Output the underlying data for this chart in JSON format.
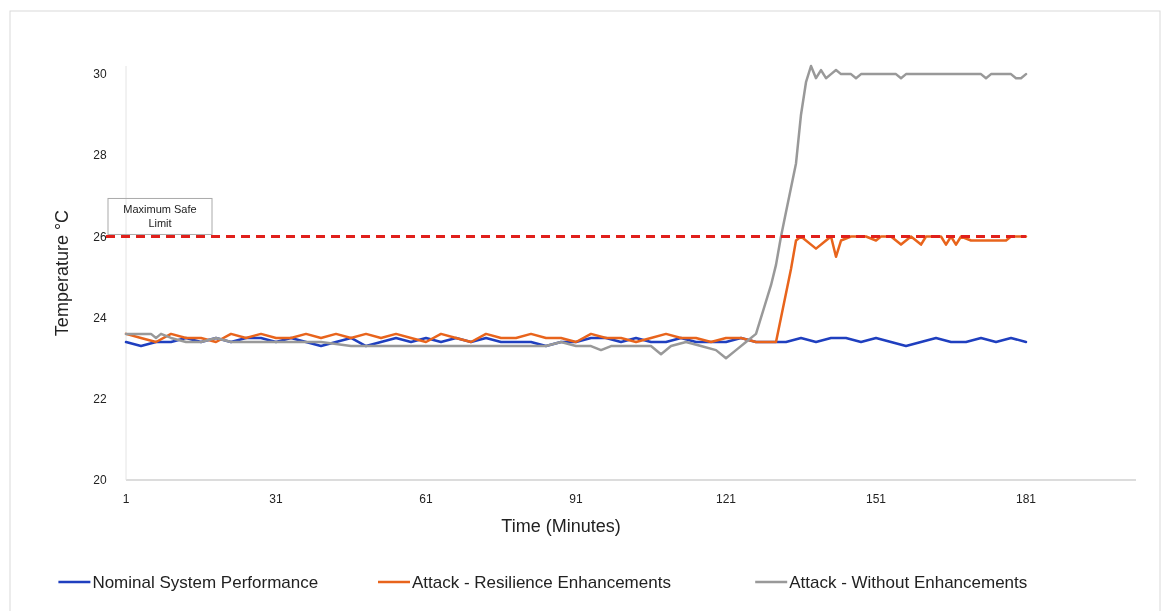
{
  "chart_data": {
    "type": "line",
    "xlabel": "Time (Minutes)",
    "ylabel": "Temperature °C",
    "xlim": [
      1,
      203
    ],
    "xticks": [
      1,
      31,
      61,
      91,
      121,
      151,
      181
    ],
    "ylim": [
      20,
      30.2
    ],
    "yticks": [
      20,
      22,
      24,
      26,
      28,
      30
    ],
    "grid": false,
    "legend": "bottom",
    "marker": "none",
    "line_style": "solid",
    "ref_lines": [
      {
        "axis": "y",
        "value": 26,
        "label": "Maximum Safe Limit",
        "color": "#e0201b",
        "line_style": "dashed"
      }
    ],
    "series": [
      {
        "name": "Nominal System Performance",
        "color": "#1f3fbf",
        "x": [
          1,
          4,
          7,
          10,
          13,
          16,
          19,
          22,
          25,
          28,
          31,
          34,
          37,
          40,
          43,
          46,
          49,
          52,
          55,
          58,
          61,
          64,
          67,
          70,
          73,
          76,
          79,
          82,
          85,
          88,
          91,
          94,
          97,
          100,
          103,
          106,
          109,
          112,
          115,
          118,
          121,
          124,
          127,
          130,
          133,
          136,
          139,
          142,
          145,
          148,
          151,
          154,
          157,
          160,
          163,
          166,
          169,
          172,
          175,
          178,
          181
        ],
        "values": [
          23.4,
          23.3,
          23.4,
          23.4,
          23.5,
          23.4,
          23.5,
          23.4,
          23.5,
          23.5,
          23.4,
          23.5,
          23.4,
          23.3,
          23.4,
          23.5,
          23.3,
          23.4,
          23.5,
          23.4,
          23.5,
          23.4,
          23.5,
          23.4,
          23.5,
          23.4,
          23.4,
          23.4,
          23.3,
          23.4,
          23.4,
          23.5,
          23.5,
          23.4,
          23.5,
          23.4,
          23.4,
          23.5,
          23.4,
          23.4,
          23.4,
          23.5,
          23.4,
          23.4,
          23.4,
          23.5,
          23.4,
          23.5,
          23.5,
          23.4,
          23.5,
          23.4,
          23.3,
          23.4,
          23.5,
          23.4,
          23.4,
          23.5,
          23.4,
          23.5,
          23.4
        ]
      },
      {
        "name": "Attack - Resilience Enhancements",
        "color": "#e8641c",
        "x": [
          1,
          4,
          7,
          10,
          13,
          16,
          19,
          22,
          25,
          28,
          31,
          34,
          37,
          40,
          43,
          46,
          49,
          52,
          55,
          58,
          61,
          64,
          67,
          70,
          73,
          76,
          79,
          82,
          85,
          88,
          91,
          94,
          97,
          100,
          103,
          106,
          109,
          112,
          115,
          118,
          121,
          124,
          127,
          129,
          131,
          134,
          135,
          136,
          139,
          141,
          142,
          143,
          144,
          146,
          149,
          151,
          152,
          154,
          156,
          158,
          160,
          161,
          164,
          165,
          166,
          167,
          168,
          170,
          174,
          177,
          178,
          181
        ],
        "values": [
          23.6,
          23.5,
          23.4,
          23.6,
          23.5,
          23.5,
          23.4,
          23.6,
          23.5,
          23.6,
          23.5,
          23.5,
          23.6,
          23.5,
          23.6,
          23.5,
          23.6,
          23.5,
          23.6,
          23.5,
          23.4,
          23.6,
          23.5,
          23.4,
          23.6,
          23.5,
          23.5,
          23.6,
          23.5,
          23.5,
          23.4,
          23.6,
          23.5,
          23.5,
          23.4,
          23.5,
          23.6,
          23.5,
          23.5,
          23.4,
          23.5,
          23.5,
          23.4,
          23.4,
          23.4,
          25.2,
          25.9,
          26.0,
          25.7,
          25.9,
          26.0,
          25.5,
          25.9,
          26.0,
          26.0,
          25.9,
          26.0,
          26.0,
          25.8,
          26.0,
          25.8,
          26.0,
          26.0,
          25.8,
          26.0,
          25.8,
          26.0,
          25.9,
          25.9,
          25.9,
          26.0,
          26.0
        ]
      },
      {
        "name": "Attack - Without Enhancements",
        "color": "#999999",
        "x": [
          1,
          4,
          6,
          7,
          8,
          10,
          13,
          16,
          19,
          22,
          25,
          31,
          40,
          46,
          55,
          70,
          85,
          88,
          91,
          94,
          96,
          98,
          101,
          103,
          106,
          108,
          110,
          113,
          116,
          119,
          121,
          123,
          125,
          127,
          128,
          129,
          130,
          131,
          132,
          133,
          134,
          135,
          136,
          137,
          138,
          139,
          140,
          141,
          142,
          143,
          144,
          146,
          147,
          148,
          155,
          156,
          157,
          172,
          173,
          174,
          178,
          179,
          180,
          181
        ],
        "values": [
          23.6,
          23.6,
          23.6,
          23.5,
          23.6,
          23.5,
          23.4,
          23.4,
          23.5,
          23.4,
          23.4,
          23.4,
          23.4,
          23.3,
          23.3,
          23.3,
          23.3,
          23.4,
          23.3,
          23.3,
          23.2,
          23.3,
          23.3,
          23.3,
          23.3,
          23.1,
          23.3,
          23.4,
          23.3,
          23.2,
          23.0,
          23.2,
          23.4,
          23.6,
          24.0,
          24.4,
          24.8,
          25.3,
          26.0,
          26.6,
          27.2,
          27.8,
          29.0,
          29.8,
          30.2,
          29.9,
          30.1,
          29.9,
          30.0,
          30.1,
          30.0,
          30.0,
          29.9,
          30.0,
          30.0,
          29.9,
          30.0,
          30.0,
          29.9,
          30.0,
          30.0,
          29.9,
          29.9,
          30.0
        ]
      }
    ]
  }
}
